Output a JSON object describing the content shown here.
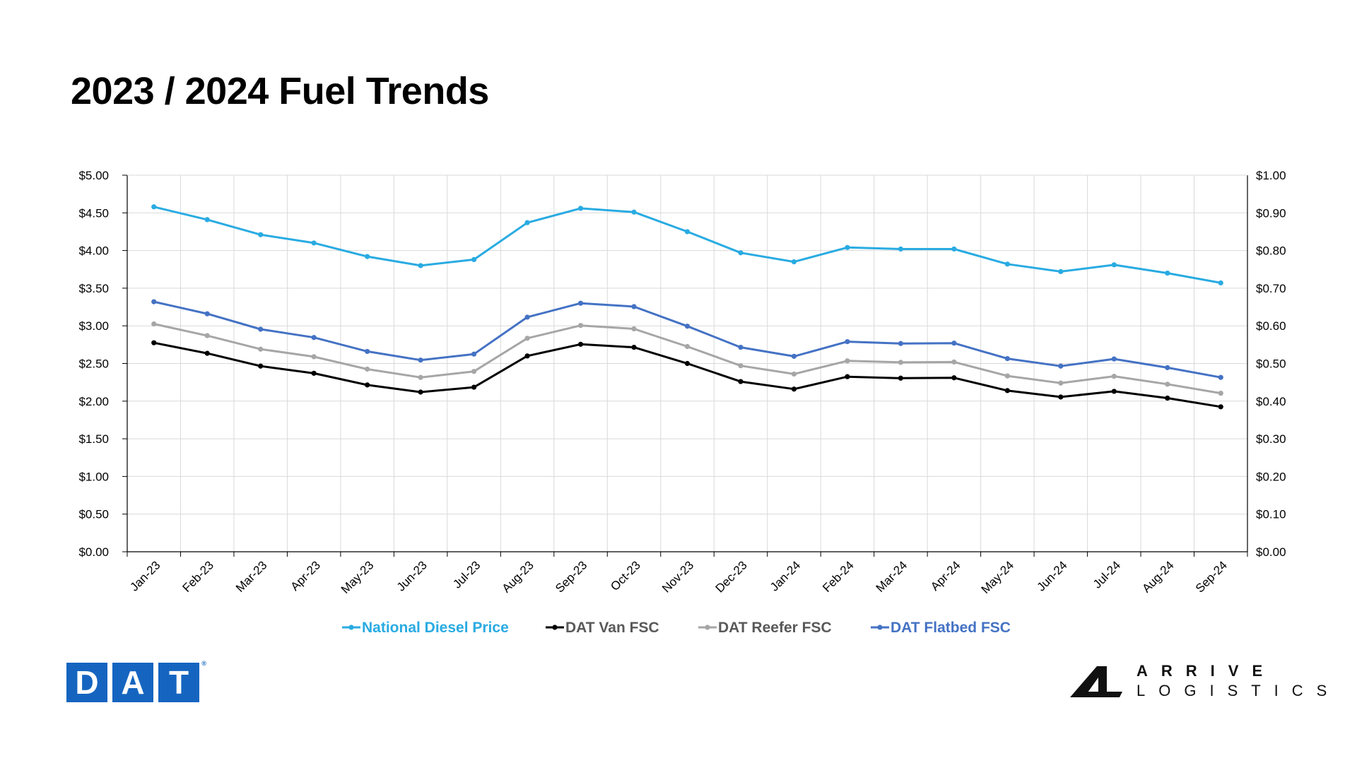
{
  "page": {
    "title": "2023 / 2024 Fuel Trends"
  },
  "chart_data": {
    "type": "line",
    "title": "",
    "categories": [
      "Jan-23",
      "Feb-23",
      "Mar-23",
      "Apr-23",
      "May-23",
      "Jun-23",
      "Jul-23",
      "Aug-23",
      "Sep-23",
      "Oct-23",
      "Nov-23",
      "Dec-23",
      "Jan-24",
      "Feb-24",
      "Mar-24",
      "Apr-24",
      "May-24",
      "Jun-24",
      "Jul-24",
      "Aug-24",
      "Sep-24"
    ],
    "y_left": {
      "min": 0,
      "max": 5,
      "step": 0.5,
      "tick_labels": [
        "$0.00",
        "$0.50",
        "$1.00",
        "$1.50",
        "$2.00",
        "$2.50",
        "$3.00",
        "$3.50",
        "$4.00",
        "$4.50",
        "$5.00"
      ]
    },
    "y_right": {
      "min": 0,
      "max": 1,
      "step": 0.1,
      "tick_labels": [
        "$0.00",
        "$0.10",
        "$0.20",
        "$0.30",
        "$0.40",
        "$0.50",
        "$0.60",
        "$0.70",
        "$0.80",
        "$0.90",
        "$1.00"
      ]
    },
    "grid": true,
    "legend_position": "bottom",
    "series": [
      {
        "name": "National Diesel Price",
        "axis": "left",
        "color": "#29abe2",
        "values": [
          4.58,
          4.41,
          4.21,
          4.1,
          3.92,
          3.8,
          3.88,
          4.37,
          4.56,
          4.51,
          4.25,
          3.97,
          3.85,
          4.04,
          4.02,
          4.02,
          3.82,
          3.72,
          3.81,
          3.7,
          3.57
        ]
      },
      {
        "name": "DAT Van FSC",
        "axis": "right",
        "color": "#000000",
        "values": [
          0.555,
          0.527,
          0.493,
          0.474,
          0.443,
          0.424,
          0.437,
          0.52,
          0.551,
          0.543,
          0.5,
          0.452,
          0.432,
          0.465,
          0.461,
          0.462,
          0.428,
          0.411,
          0.426,
          0.408,
          0.385
        ]
      },
      {
        "name": "DAT Reefer FSC",
        "axis": "right",
        "color": "#a6a6a6",
        "values": [
          0.605,
          0.574,
          0.538,
          0.518,
          0.485,
          0.463,
          0.479,
          0.567,
          0.601,
          0.592,
          0.545,
          0.494,
          0.472,
          0.507,
          0.503,
          0.504,
          0.467,
          0.448,
          0.466,
          0.445,
          0.421
        ]
      },
      {
        "name": "DAT Flatbed FSC",
        "axis": "right",
        "color": "#4472c4",
        "values": [
          0.664,
          0.632,
          0.591,
          0.569,
          0.532,
          0.509,
          0.525,
          0.623,
          0.66,
          0.651,
          0.599,
          0.543,
          0.519,
          0.558,
          0.553,
          0.554,
          0.513,
          0.493,
          0.512,
          0.489,
          0.463
        ]
      }
    ]
  },
  "logos": {
    "dat": {
      "letters": [
        "D",
        "A",
        "T"
      ],
      "reg": "®"
    },
    "arrive": {
      "line1": "ARRIVE",
      "line2": "LOGISTICS"
    }
  }
}
